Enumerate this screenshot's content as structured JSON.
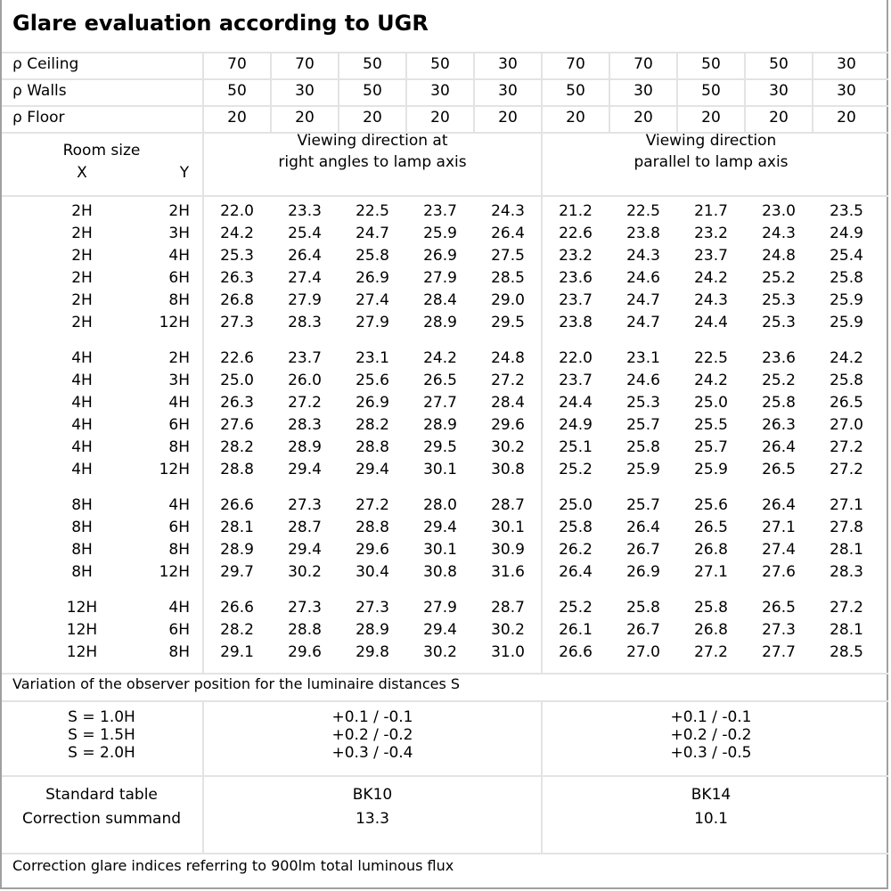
{
  "title": "Glare evaluation according to UGR",
  "reflectances": [
    {
      "label": "ρ Ceiling",
      "values": [
        "70",
        "70",
        "50",
        "50",
        "30",
        "70",
        "70",
        "50",
        "50",
        "30"
      ]
    },
    {
      "label": "ρ Walls",
      "values": [
        "50",
        "30",
        "50",
        "30",
        "30",
        "50",
        "30",
        "50",
        "30",
        "30"
      ]
    },
    {
      "label": "ρ Floor",
      "values": [
        "20",
        "20",
        "20",
        "20",
        "20",
        "20",
        "20",
        "20",
        "20",
        "20"
      ]
    }
  ],
  "header": {
    "room_size": "Room size",
    "x": "X",
    "y": "Y",
    "dir_right_1": "Viewing direction at",
    "dir_right_2": "right angles to lamp axis",
    "dir_parallel_1": "Viewing direction",
    "dir_parallel_2": "parallel to lamp axis"
  },
  "groups": [
    [
      {
        "x": "2H",
        "y": "2H",
        "v": [
          "22.0",
          "23.3",
          "22.5",
          "23.7",
          "24.3",
          "21.2",
          "22.5",
          "21.7",
          "23.0",
          "23.5"
        ]
      },
      {
        "x": "2H",
        "y": "3H",
        "v": [
          "24.2",
          "25.4",
          "24.7",
          "25.9",
          "26.4",
          "22.6",
          "23.8",
          "23.2",
          "24.3",
          "24.9"
        ]
      },
      {
        "x": "2H",
        "y": "4H",
        "v": [
          "25.3",
          "26.4",
          "25.8",
          "26.9",
          "27.5",
          "23.2",
          "24.3",
          "23.7",
          "24.8",
          "25.4"
        ]
      },
      {
        "x": "2H",
        "y": "6H",
        "v": [
          "26.3",
          "27.4",
          "26.9",
          "27.9",
          "28.5",
          "23.6",
          "24.6",
          "24.2",
          "25.2",
          "25.8"
        ]
      },
      {
        "x": "2H",
        "y": "8H",
        "v": [
          "26.8",
          "27.9",
          "27.4",
          "28.4",
          "29.0",
          "23.7",
          "24.7",
          "24.3",
          "25.3",
          "25.9"
        ]
      },
      {
        "x": "2H",
        "y": "12H",
        "v": [
          "27.3",
          "28.3",
          "27.9",
          "28.9",
          "29.5",
          "23.8",
          "24.7",
          "24.4",
          "25.3",
          "25.9"
        ]
      }
    ],
    [
      {
        "x": "4H",
        "y": "2H",
        "v": [
          "22.6",
          "23.7",
          "23.1",
          "24.2",
          "24.8",
          "22.0",
          "23.1",
          "22.5",
          "23.6",
          "24.2"
        ]
      },
      {
        "x": "4H",
        "y": "3H",
        "v": [
          "25.0",
          "26.0",
          "25.6",
          "26.5",
          "27.2",
          "23.7",
          "24.6",
          "24.2",
          "25.2",
          "25.8"
        ]
      },
      {
        "x": "4H",
        "y": "4H",
        "v": [
          "26.3",
          "27.2",
          "26.9",
          "27.7",
          "28.4",
          "24.4",
          "25.3",
          "25.0",
          "25.8",
          "26.5"
        ]
      },
      {
        "x": "4H",
        "y": "6H",
        "v": [
          "27.6",
          "28.3",
          "28.2",
          "28.9",
          "29.6",
          "24.9",
          "25.7",
          "25.5",
          "26.3",
          "27.0"
        ]
      },
      {
        "x": "4H",
        "y": "8H",
        "v": [
          "28.2",
          "28.9",
          "28.8",
          "29.5",
          "30.2",
          "25.1",
          "25.8",
          "25.7",
          "26.4",
          "27.2"
        ]
      },
      {
        "x": "4H",
        "y": "12H",
        "v": [
          "28.8",
          "29.4",
          "29.4",
          "30.1",
          "30.8",
          "25.2",
          "25.9",
          "25.9",
          "26.5",
          "27.2"
        ]
      }
    ],
    [
      {
        "x": "8H",
        "y": "4H",
        "v": [
          "26.6",
          "27.3",
          "27.2",
          "28.0",
          "28.7",
          "25.0",
          "25.7",
          "25.6",
          "26.4",
          "27.1"
        ]
      },
      {
        "x": "8H",
        "y": "6H",
        "v": [
          "28.1",
          "28.7",
          "28.8",
          "29.4",
          "30.1",
          "25.8",
          "26.4",
          "26.5",
          "27.1",
          "27.8"
        ]
      },
      {
        "x": "8H",
        "y": "8H",
        "v": [
          "28.9",
          "29.4",
          "29.6",
          "30.1",
          "30.9",
          "26.2",
          "26.7",
          "26.8",
          "27.4",
          "28.1"
        ]
      },
      {
        "x": "8H",
        "y": "12H",
        "v": [
          "29.7",
          "30.2",
          "30.4",
          "30.8",
          "31.6",
          "26.4",
          "26.9",
          "27.1",
          "27.6",
          "28.3"
        ]
      }
    ],
    [
      {
        "x": "12H",
        "y": "4H",
        "v": [
          "26.6",
          "27.3",
          "27.3",
          "27.9",
          "28.7",
          "25.2",
          "25.8",
          "25.8",
          "26.5",
          "27.2"
        ]
      },
      {
        "x": "12H",
        "y": "6H",
        "v": [
          "28.2",
          "28.8",
          "28.9",
          "29.4",
          "30.2",
          "26.1",
          "26.7",
          "26.8",
          "27.3",
          "28.1"
        ]
      },
      {
        "x": "12H",
        "y": "8H",
        "v": [
          "29.1",
          "29.6",
          "29.8",
          "30.2",
          "31.0",
          "26.6",
          "27.0",
          "27.2",
          "27.7",
          "28.5"
        ]
      }
    ]
  ],
  "variation": {
    "title": "Variation of the observer position for the luminaire distances S",
    "rows": [
      {
        "s": "S = 1.0H",
        "right": "+0.1 / -0.1",
        "parallel": "+0.1 / -0.1"
      },
      {
        "s": "S = 1.5H",
        "right": "+0.2 / -0.2",
        "parallel": "+0.2 / -0.2"
      },
      {
        "s": "S = 2.0H",
        "right": "+0.3 / -0.4",
        "parallel": "+0.3 / -0.5"
      }
    ]
  },
  "standard": {
    "label1": "Standard table",
    "label2": "Correction summand",
    "right_table": "BK10",
    "right_summand": "13.3",
    "parallel_table": "BK14",
    "parallel_summand": "10.1"
  },
  "footer": "Correction glare indices referring to 900lm total luminous flux"
}
